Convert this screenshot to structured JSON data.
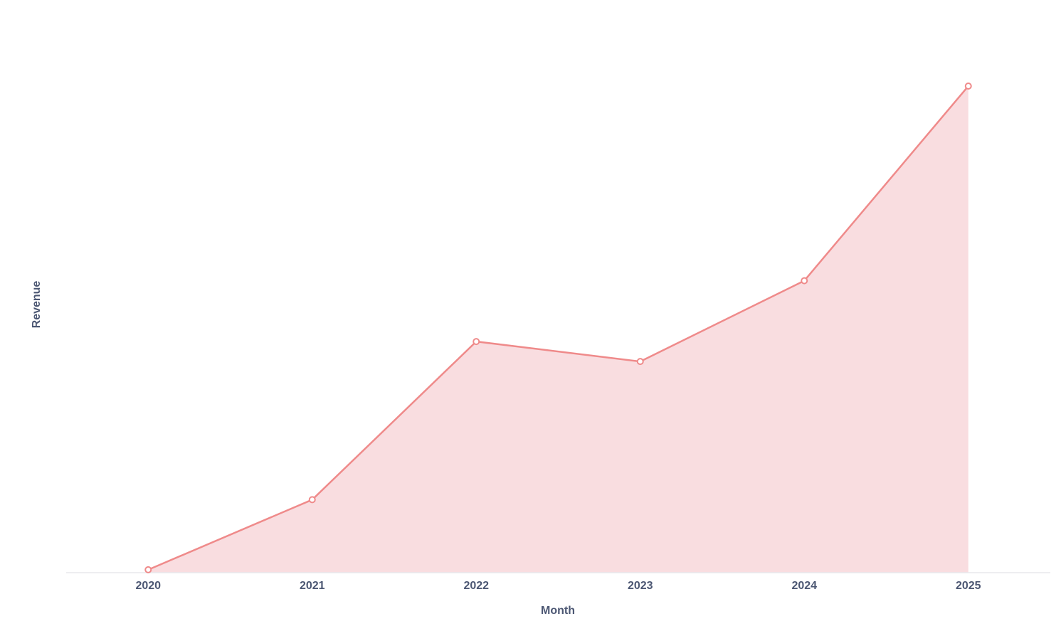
{
  "chart_data": {
    "type": "area",
    "x_label": "Month",
    "y_label": "Revenue",
    "categories": [
      "2020",
      "2021",
      "2022",
      "2023",
      "2024",
      "2025"
    ],
    "values": [
      0.6,
      15,
      47.5,
      43.4,
      60,
      100
    ],
    "color": "#ef8a8a",
    "fill_color": "#f9dde0"
  }
}
